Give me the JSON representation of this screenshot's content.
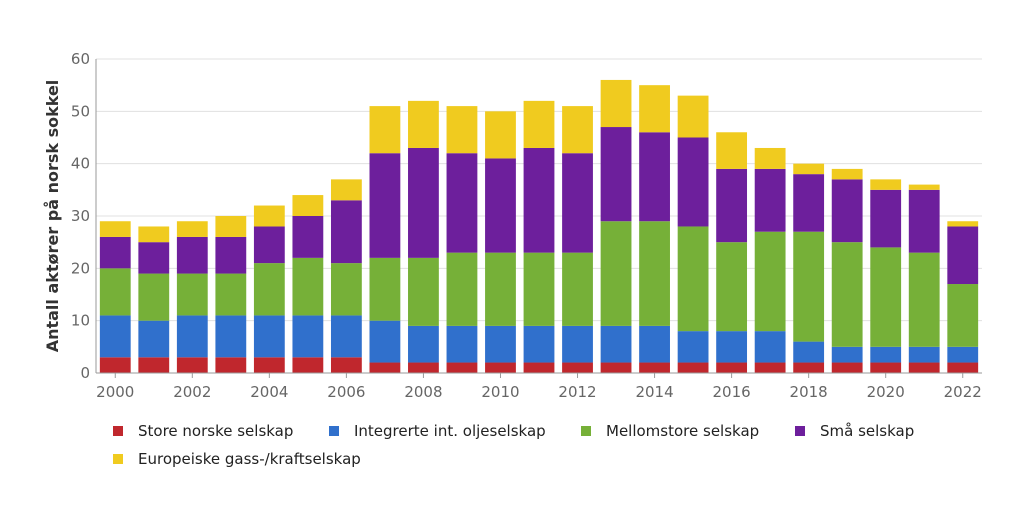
{
  "chart_data": {
    "type": "bar",
    "stacked": true,
    "title": "",
    "xlabel": "",
    "ylabel": "Antall aktører på norsk sokkel",
    "ylim": [
      0,
      60
    ],
    "yticks": [
      0,
      10,
      20,
      30,
      40,
      50,
      60
    ],
    "grid": true,
    "legend_position": "bottom",
    "categories": [
      "2000",
      "2001",
      "2002",
      "2003",
      "2004",
      "2005",
      "2006",
      "2007",
      "2008",
      "2009",
      "2010",
      "2011",
      "2012",
      "2013",
      "2014",
      "2015",
      "2016",
      "2017",
      "2018",
      "2019",
      "2020",
      "2021",
      "2022"
    ],
    "xtick_labels": [
      "2000",
      "2002",
      "2004",
      "2006",
      "2008",
      "2010",
      "2012",
      "2014",
      "2016",
      "2018",
      "2020",
      "2022"
    ],
    "series": [
      {
        "name": "Store norske selskap",
        "color": "#c0272d",
        "values": [
          3,
          3,
          3,
          3,
          3,
          3,
          3,
          2,
          2,
          2,
          2,
          2,
          2,
          2,
          2,
          2,
          2,
          2,
          2,
          2,
          2,
          2,
          2
        ]
      },
      {
        "name": "Integrerte int. oljeselskap",
        "color": "#3070cc",
        "values": [
          8,
          7,
          8,
          8,
          8,
          8,
          8,
          8,
          7,
          7,
          7,
          7,
          7,
          7,
          7,
          6,
          6,
          6,
          4,
          3,
          3,
          3,
          3
        ]
      },
      {
        "name": "Mellomstore selskap",
        "color": "#76b038",
        "values": [
          9,
          9,
          8,
          8,
          10,
          11,
          10,
          12,
          13,
          14,
          14,
          14,
          14,
          20,
          20,
          20,
          17,
          19,
          21,
          20,
          19,
          18,
          12
        ]
      },
      {
        "name": "Små selskap",
        "color": "#6d1f9c",
        "values": [
          6,
          6,
          7,
          7,
          7,
          8,
          12,
          20,
          21,
          19,
          18,
          20,
          19,
          18,
          17,
          17,
          14,
          12,
          11,
          12,
          11,
          12,
          11
        ]
      },
      {
        "name": "Europeiske gass-/kraftselskap",
        "color": "#f0cb1f",
        "values": [
          3,
          3,
          3,
          4,
          4,
          4,
          4,
          9,
          9,
          9,
          9,
          9,
          9,
          9,
          9,
          8,
          7,
          4,
          2,
          2,
          2,
          1,
          1
        ]
      }
    ]
  }
}
